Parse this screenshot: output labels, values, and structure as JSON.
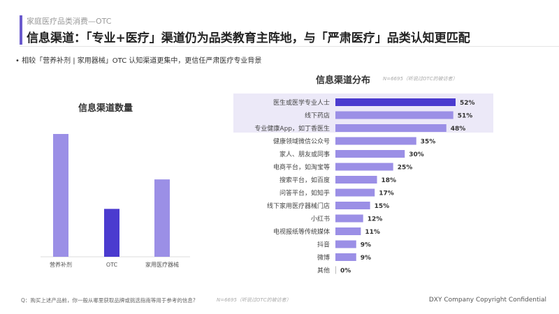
{
  "header": {
    "subtitle": "家庭医疗品类消费—OTC",
    "title": "信息渠道：「专业+医疗」渠道仍为品类教育主阵地，与「严肃医疗」品类认知更匹配",
    "bullet": "•   相较「营养补剂 | 家用器械」OTC 认知渠道更集中，更信任严肃医疗专业背景"
  },
  "chart_data": [
    {
      "type": "bar",
      "title": "信息渠道数量",
      "categories": [
        "营养补剂",
        "OTC",
        "家用医疗器械"
      ],
      "values": [
        100,
        39,
        63
      ],
      "colors": [
        "#9b8fe6",
        "#4b3bcf",
        "#9b8fe6"
      ],
      "note": "relative heights, no axis shown"
    },
    {
      "type": "bar",
      "orientation": "horizontal",
      "title": "信息渠道分布",
      "note": "N=6695（听说过OTC的被访者）",
      "categories": [
        "医生或医学专业人士",
        "线下药店",
        "专业健康App，如丁香医生",
        "健康领域微信公众号",
        "家人、朋友或同事",
        "电商平台，如淘宝等",
        "搜索平台，如百度",
        "问答平台，如知乎",
        "线下家用医疗器械门店",
        "小红书",
        "电视报纸等传统媒体",
        "抖音",
        "微博",
        "其他"
      ],
      "values": [
        52,
        51,
        48,
        35,
        30,
        25,
        18,
        17,
        15,
        12,
        11,
        9,
        9,
        0
      ],
      "unit": "%",
      "highlight": [
        0,
        1,
        2
      ],
      "colors": {
        "top": "#4b3bcf",
        "other": "#9b8fe6"
      },
      "xlim": [
        0,
        52
      ]
    }
  ],
  "footer": {
    "question": "Q：购买上述产品前，你一般从哪里获取品牌或挑选指南等用于参考的信息?",
    "note": "N=6695（听说过OTC的被访者）",
    "copyright": "DXY Company Copyright Confidential"
  }
}
